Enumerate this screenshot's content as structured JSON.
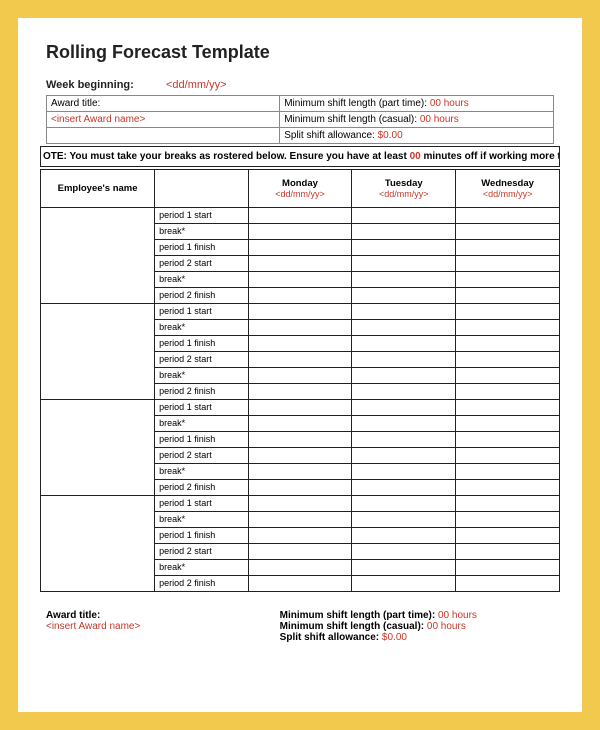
{
  "title": "Rolling Forecast Template",
  "week_begin_label": "Week beginning:",
  "week_begin_value": "<dd/mm/yy>",
  "info": {
    "award_title_label": "Award title:",
    "award_title_value": "<insert Award name>",
    "min_shift_pt_label": "Minimum shift length (part time): ",
    "min_shift_pt_value": "00 hours",
    "min_shift_casual_label": "Minimum shift length (casual): ",
    "min_shift_casual_value": "00 hours",
    "split_shift_label": "Split shift allowance: ",
    "split_shift_value": "$0.00"
  },
  "note": {
    "prefix": "OTE: You must take your breaks as rostered below. Ensure you have at least ",
    "highlight": "00",
    "suffix": " minutes off if working more th"
  },
  "headers": {
    "employee": "Employee's name",
    "days": [
      {
        "name": "Monday",
        "date": "<dd/mm/yy>"
      },
      {
        "name": "Tuesday",
        "date": "<dd/mm/yy>"
      },
      {
        "name": "Wednesday",
        "date": "<dd/mm/yy>"
      }
    ]
  },
  "period_labels": [
    "period 1 start",
    "break*",
    "period 1 finish",
    "period 2 start",
    "break*",
    "period 2 finish"
  ],
  "employee_count": 4,
  "footer": {
    "award_title_label": "Award title:",
    "award_title_value": "<insert Award name>",
    "min_shift_pt_label": "Minimum shift length (part time): ",
    "min_shift_pt_value": "00 hours",
    "min_shift_casual_label": "Minimum shift length (casual): ",
    "min_shift_casual_value": "00 hours",
    "split_shift_label": "Split shift allowance: ",
    "split_shift_value": "$0.00"
  },
  "colors": {
    "page_bg": "#f2c94c",
    "paper_bg": "#ffffff",
    "text": "#222222",
    "accent": "#c0392b",
    "border": "#222222"
  }
}
